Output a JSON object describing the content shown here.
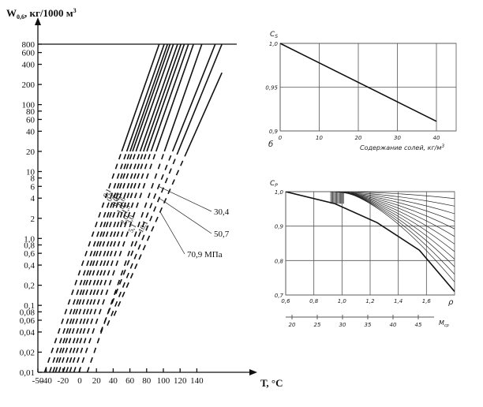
{
  "chart_data": [
    {
      "type": "line",
      "scale": "log-y",
      "ylabel": "W",
      "ylabel_sub": "0,6",
      "ylabel_unit": ", кг/1000 м",
      "ylabel_sup": "3",
      "xlabel": "Т, °С",
      "xlim": [
        -50,
        170
      ],
      "ylim": [
        0.01,
        800
      ],
      "yticks": [
        800,
        600,
        400,
        200,
        100,
        80,
        60,
        40,
        20,
        10,
        8,
        6,
        4,
        2,
        1,
        0.8,
        0.6,
        0.4,
        0.2,
        0.1,
        0.08,
        0.06,
        0.04,
        0.02,
        0.01
      ],
      "ytick_labels": [
        "800",
        "600",
        "400",
        "200",
        "100",
        "80",
        "60",
        "40",
        "20",
        "10",
        "8",
        "6",
        "4",
        "2",
        "1,0",
        "0,8",
        "0,6",
        "0,4",
        "0,2",
        "0,1",
        "0,08",
        "0,06",
        "0,04",
        "0,02",
        "0,01"
      ],
      "xticks": [
        -50,
        -40,
        -20,
        0,
        20,
        40,
        60,
        80,
        100,
        120,
        140
      ],
      "xtick_labels": [
        "-50",
        "-40",
        "-20",
        "0",
        "20",
        "40",
        "60",
        "80",
        "100",
        "120",
        "140"
      ],
      "series": [
        {
          "name": "0,1",
          "dashed_below": 20,
          "x": [
            -42,
            95
          ],
          "y": [
            0.01,
            800
          ]
        },
        {
          "name": "0,2",
          "dashed_below": 20,
          "x": [
            -36,
            101
          ],
          "y": [
            0.01,
            800
          ]
        },
        {
          "name": "0,3",
          "dashed_below": 20,
          "x": [
            -32,
            105
          ],
          "y": [
            0.01,
            800
          ]
        },
        {
          "name": "0,4",
          "dashed_below": 20,
          "x": [
            -29,
            108
          ],
          "y": [
            0.01,
            800
          ]
        },
        {
          "name": "0,6",
          "dashed_below": 20,
          "x": [
            -25,
            112
          ],
          "y": [
            0.01,
            800
          ]
        },
        {
          "name": "1,0",
          "dashed_below": 20,
          "x": [
            -20,
            117
          ],
          "y": [
            0.01,
            800
          ]
        },
        {
          "name": "1,5",
          "dashed_below": 20,
          "x": [
            -16,
            121
          ],
          "y": [
            0.01,
            800
          ]
        },
        {
          "name": "2,0",
          "dashed_below": 20,
          "x": [
            -12,
            125
          ],
          "y": [
            0.01,
            800
          ]
        },
        {
          "name": "3,0",
          "dashed_below": 20,
          "x": [
            -7,
            130
          ],
          "y": [
            0.01,
            800
          ]
        },
        {
          "name": "5,1",
          "dashed_below": 20,
          "x": [
            -1,
            136
          ],
          "y": [
            0.01,
            800
          ]
        },
        {
          "name": "10,1",
          "dashed_below": 20,
          "x": [
            9,
            146
          ],
          "y": [
            0.01,
            800
          ]
        },
        {
          "name": "30,4",
          "dashed_below": 20,
          "x": [
            25,
            162
          ],
          "y": [
            0.04,
            800
          ]
        },
        {
          "name": "50,7",
          "dashed_below": 20,
          "x": [
            33,
            170
          ],
          "y": [
            0.05,
            800
          ]
        },
        {
          "name": "70,9 МПа",
          "dashed_below": 20,
          "x": [
            41,
            170
          ],
          "y": [
            0.07,
            300
          ]
        }
      ]
    },
    {
      "type": "line",
      "panel_letter": "б",
      "ylabel": "C",
      "ylabel_sub": "S",
      "xlabel": "Содержание солей, кг/м",
      "xlabel_sup": "3",
      "xlim": [
        0,
        40
      ],
      "ylim": [
        0.9,
        1.0
      ],
      "xticks": [
        0,
        10,
        20,
        30,
        40
      ],
      "xtick_labels": [
        "0",
        "10",
        "20",
        "30",
        "40"
      ],
      "yticks": [
        1.0,
        0.95,
        0.9
      ],
      "ytick_labels": [
        "1,0",
        "0,95",
        "0,9"
      ],
      "series": [
        {
          "x": [
            0,
            40
          ],
          "y": [
            1.0,
            0.911
          ]
        }
      ]
    },
    {
      "type": "line",
      "ylabel": "C",
      "ylabel_sub": "P",
      "xlabel": "ρ",
      "xlabel2": "M",
      "xlabel2_sub": "ср",
      "xlim": [
        0.6,
        1.8
      ],
      "ylim": [
        0.7,
        1.0
      ],
      "xticks": [
        0.6,
        0.8,
        1.0,
        1.2,
        1.4,
        1.6
      ],
      "xtick_labels": [
        "0,6",
        "0,8",
        "1,0",
        "1,2",
        "1,4",
        "1,6"
      ],
      "x2ticks": [
        20,
        25,
        30,
        35,
        40,
        45
      ],
      "x2tick_labels": [
        "20",
        "25",
        "30",
        "35",
        "40",
        "45"
      ],
      "yticks": [
        1.0,
        0.9,
        0.8,
        0.7
      ],
      "ytick_labels": [
        "1,0",
        "0,9",
        "0,8",
        "0,7"
      ],
      "fan_count": 12,
      "series": [
        {
          "x": [
            0.6,
            0.95,
            1.25,
            1.55,
            1.8
          ],
          "y": [
            1.0,
            0.965,
            0.91,
            0.83,
            0.71
          ]
        }
      ]
    }
  ]
}
